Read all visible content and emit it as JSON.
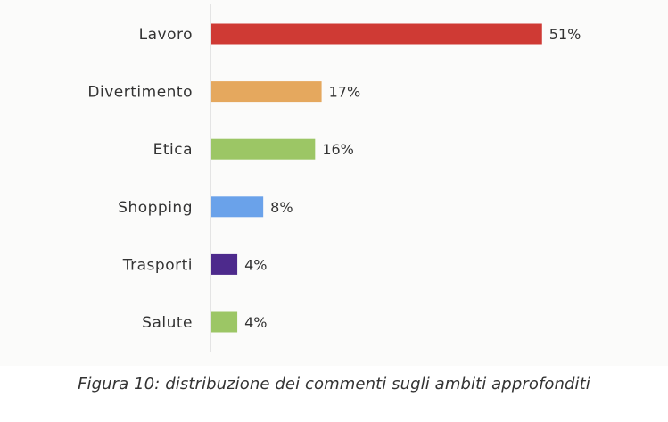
{
  "chart_data": {
    "type": "bar",
    "orientation": "horizontal",
    "categories": [
      "Lavoro",
      "Divertimento",
      "Etica",
      "Shopping",
      "Trasporti",
      "Salute"
    ],
    "values": [
      51,
      17,
      16,
      8,
      4,
      4
    ],
    "value_labels": [
      "51%",
      "17%",
      "16%",
      "8%",
      "4%",
      "4%"
    ],
    "colors": [
      "#cf3a34",
      "#e5a85e",
      "#9cc665",
      "#6aa2ea",
      "#4d2a8c",
      "#9cc665"
    ],
    "xlim": [
      0,
      100
    ],
    "grid": false
  },
  "caption": "Figura 10:  distribuzione dei commenti sugli ambiti approfonditi"
}
